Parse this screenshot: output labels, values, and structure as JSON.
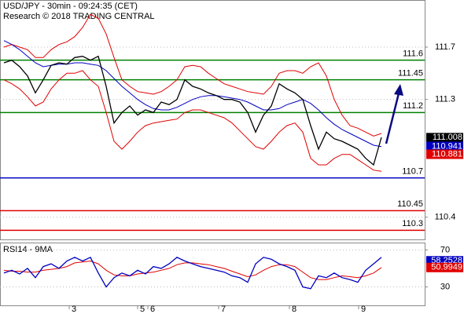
{
  "chart_data": [
    {
      "type": "line",
      "title": "USD/JPY - 30min - 09:24:35 (CET)",
      "subtitle": "Research © 2018 TRADING CENTRAL",
      "ylim": [
        110.23,
        112.06
      ],
      "yticks": [
        111.7,
        111.3,
        110.4
      ],
      "xlim": [
        -0.5,
        53.5
      ],
      "xticks": [
        {
          "value": 8.3,
          "label": "3"
        },
        {
          "value": 17,
          "label": "5"
        },
        {
          "value": 18.3,
          "label": "6"
        },
        {
          "value": 27.3,
          "label": "7"
        },
        {
          "value": 36.3,
          "label": "8"
        },
        {
          "value": 45.1,
          "label": "9"
        }
      ],
      "levels": [
        {
          "value": 111.6,
          "color": "#008000"
        },
        {
          "value": 111.45,
          "color": "#008000"
        },
        {
          "value": 111.2,
          "color": "#008000"
        },
        {
          "value": 110.7,
          "color": "#0000c0"
        },
        {
          "value": 110.45,
          "color": "#e00000"
        },
        {
          "value": 110.3,
          "color": "#e00000"
        }
      ],
      "price_tags": [
        {
          "value": 111.008,
          "color": "#000000"
        },
        {
          "value": 110.941,
          "color": "#0000c0"
        },
        {
          "value": 110.881,
          "color": "#e00000"
        }
      ],
      "series": [
        {
          "color": "#e00000",
          "values": [
            111.7,
            111.72,
            111.7,
            111.68,
            111.62,
            111.62,
            111.68,
            111.72,
            111.74,
            111.78,
            111.85,
            111.95,
            111.92,
            111.8,
            111.62,
            111.45,
            111.4,
            111.36,
            111.35,
            111.34,
            111.36,
            111.4,
            111.45,
            111.55,
            111.56,
            111.55,
            111.5,
            111.46,
            111.42,
            111.4,
            111.38,
            111.36,
            111.35,
            111.34,
            111.4,
            111.5,
            111.52,
            111.52,
            111.5,
            111.55,
            111.58,
            111.48,
            111.3,
            111.18,
            111.1,
            111.08,
            111.05,
            111.02,
            111.04
          ]
        },
        {
          "color": "#e00000",
          "values": [
            111.45,
            111.42,
            111.38,
            111.32,
            111.25,
            111.28,
            111.38,
            111.45,
            111.5,
            111.5,
            111.52,
            111.45,
            111.4,
            111.2,
            110.98,
            110.92,
            110.98,
            111.05,
            111.1,
            111.12,
            111.13,
            111.14,
            111.15,
            111.2,
            111.22,
            111.22,
            111.2,
            111.18,
            111.16,
            111.12,
            111.06,
            111.0,
            110.94,
            110.92,
            110.98,
            111.05,
            111.1,
            111.12,
            111.05,
            110.85,
            110.8,
            110.8,
            110.85,
            110.88,
            110.88,
            110.84,
            110.8,
            110.76,
            110.75
          ]
        },
        {
          "color": "#0000c0",
          "values": [
            111.75,
            111.72,
            111.68,
            111.63,
            111.58,
            111.55,
            111.56,
            111.57,
            111.57,
            111.58,
            111.58,
            111.57,
            111.56,
            111.52,
            111.46,
            111.4,
            111.35,
            111.3,
            111.26,
            111.23,
            111.22,
            111.22,
            111.24,
            111.27,
            111.3,
            111.32,
            111.33,
            111.33,
            111.32,
            111.31,
            111.3,
            111.28,
            111.25,
            111.22,
            111.22,
            111.23,
            111.26,
            111.28,
            111.3,
            111.27,
            111.22,
            111.16,
            111.11,
            111.07,
            111.04,
            111.01,
            110.98,
            110.95,
            110.94
          ]
        },
        {
          "color": "#000000",
          "values": [
            111.58,
            111.6,
            111.55,
            111.48,
            111.35,
            111.45,
            111.56,
            111.58,
            111.57,
            111.62,
            111.63,
            111.6,
            111.63,
            111.4,
            111.12,
            111.2,
            111.25,
            111.18,
            111.22,
            111.2,
            111.28,
            111.26,
            111.3,
            111.45,
            111.4,
            111.38,
            111.35,
            111.33,
            111.3,
            111.3,
            111.28,
            111.2,
            111.05,
            111.18,
            111.25,
            111.42,
            111.38,
            111.35,
            111.3,
            111.1,
            110.92,
            111.05,
            111.0,
            110.98,
            110.95,
            110.92,
            110.85,
            110.8,
            111.01
          ]
        }
      ]
    },
    {
      "type": "line",
      "title": "RSI14 - 9MA",
      "ylim": [
        10,
        78
      ],
      "yticks": [
        70,
        30
      ],
      "price_tags": [
        {
          "value": 58.2528,
          "color": "#0000c0"
        },
        {
          "value": 50.9949,
          "color": "#e00000"
        }
      ],
      "series": [
        {
          "color": "#e00000",
          "values": [
            48,
            47,
            47,
            46,
            46,
            48,
            49,
            50,
            52,
            56,
            57,
            58,
            55,
            48,
            43,
            42,
            42,
            44,
            45,
            46,
            48,
            50,
            54,
            56,
            56,
            55,
            54,
            52,
            50,
            47,
            44,
            41,
            43,
            48,
            52,
            54,
            54,
            52,
            46,
            40,
            38,
            38,
            40,
            42,
            41,
            40,
            42,
            45,
            51
          ]
        },
        {
          "color": "#0000c0",
          "values": [
            45,
            48,
            44,
            50,
            40,
            52,
            55,
            50,
            58,
            62,
            58,
            62,
            45,
            30,
            40,
            45,
            42,
            48,
            44,
            52,
            50,
            55,
            62,
            58,
            55,
            52,
            50,
            48,
            46,
            42,
            40,
            35,
            55,
            62,
            60,
            55,
            52,
            48,
            30,
            28,
            42,
            40,
            45,
            40,
            38,
            35,
            48,
            55,
            62
          ]
        }
      ]
    }
  ]
}
